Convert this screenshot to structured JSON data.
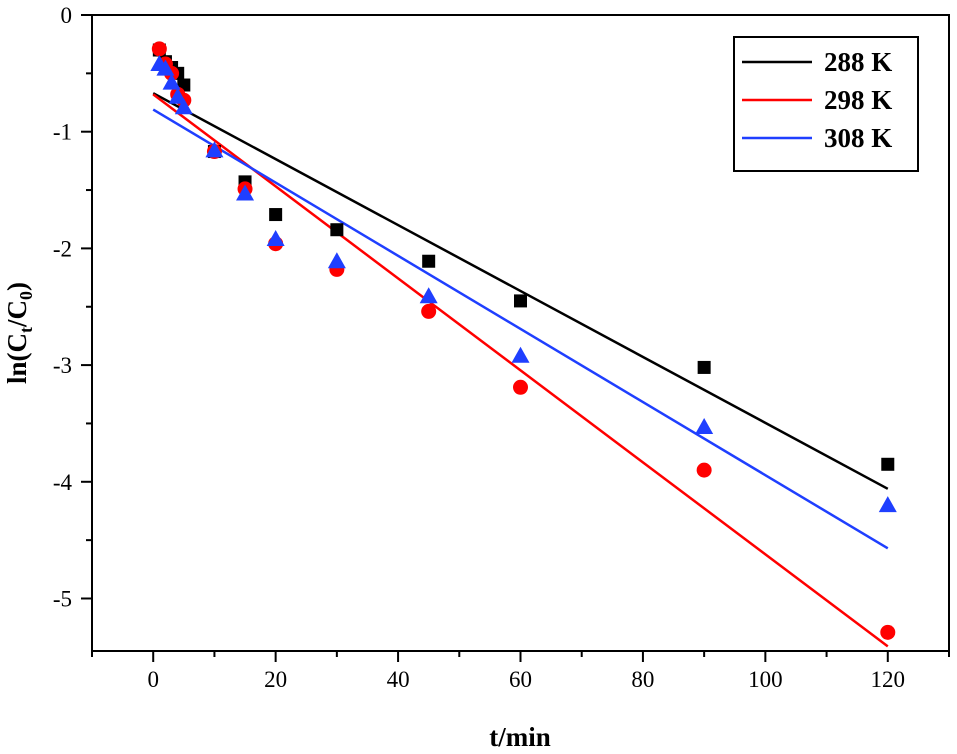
{
  "chart_data": {
    "type": "scatter",
    "xlabel": "t/min",
    "ylabel": {
      "prefix": "ln(C",
      "sub1": "t",
      "mid": "/C",
      "sub2": "0",
      "suffix": ")"
    },
    "xlim": [
      -10,
      130
    ],
    "ylim": [
      -5.45,
      0
    ],
    "xticks": [
      0,
      20,
      40,
      60,
      80,
      100,
      120
    ],
    "xtick_labels": [
      "0",
      "20",
      "40",
      "60",
      "80",
      "100",
      "120"
    ],
    "yticks": [
      0,
      -1,
      -2,
      -3,
      -4,
      -5
    ],
    "ytick_labels": [
      "0",
      "-1",
      "-2",
      "-3",
      "-4",
      "-5"
    ],
    "x_minor_step": 10,
    "y_minor_step": 0.5,
    "grid": false,
    "legend_position": "top-right",
    "series": [
      {
        "name": "288 K",
        "color": "#000000",
        "marker": "square",
        "x": [
          1,
          2,
          3,
          4,
          5,
          10,
          15,
          20,
          30,
          45,
          60,
          90,
          120
        ],
        "y": [
          -0.3,
          -0.4,
          -0.45,
          -0.5,
          -0.6,
          -1.17,
          -1.43,
          -1.71,
          -1.84,
          -2.11,
          -2.45,
          -3.02,
          -3.85
        ],
        "fit": {
          "x": [
            0,
            120
          ],
          "y": [
            -0.67,
            -4.06
          ]
        }
      },
      {
        "name": "298 K",
        "color": "#ff0000",
        "marker": "circle",
        "x": [
          1,
          2,
          3,
          4,
          5,
          10,
          15,
          20,
          30,
          45,
          60,
          90,
          120
        ],
        "y": [
          -0.29,
          -0.42,
          -0.5,
          -0.68,
          -0.73,
          -1.17,
          -1.49,
          -1.96,
          -2.18,
          -2.54,
          -3.19,
          -3.9,
          -5.29
        ],
        "fit": {
          "x": [
            0,
            120
          ],
          "y": [
            -0.68,
            -5.41
          ]
        }
      },
      {
        "name": "308 K",
        "color": "#1f3fff",
        "marker": "triangle",
        "x": [
          1,
          2,
          3,
          4,
          5,
          10,
          15,
          20,
          30,
          45,
          60,
          90,
          120
        ],
        "y": [
          -0.42,
          -0.46,
          -0.58,
          -0.7,
          -0.79,
          -1.16,
          -1.53,
          -1.92,
          -2.11,
          -2.41,
          -2.92,
          -3.53,
          -4.2
        ],
        "fit": {
          "x": [
            0,
            120
          ],
          "y": [
            -0.81,
            -4.57
          ]
        }
      }
    ]
  }
}
